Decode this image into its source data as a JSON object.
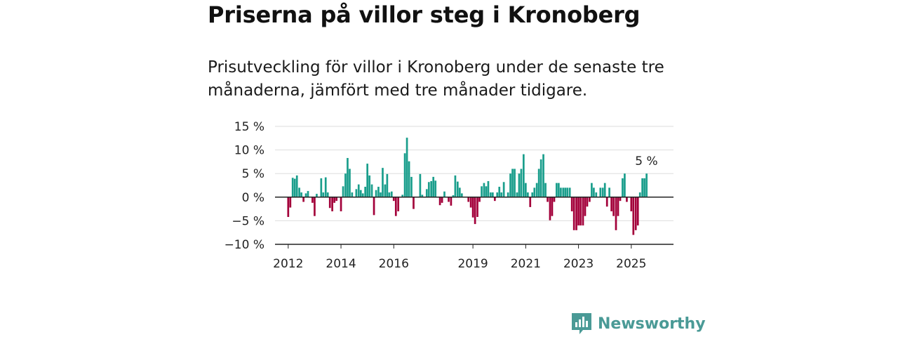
{
  "header": {
    "title": "Priserna på villor steg i Kronoberg",
    "subtitle": "Prisutveckling för villor i Kronoberg under de senaste tre månaderna, jämfört med tre månader tidigare."
  },
  "brand": {
    "name": "Newsworthy",
    "icon": "newsworthy-logo-icon",
    "color": "#4a9a96"
  },
  "colors": {
    "positive": "#1a9e8c",
    "negative": "#a3003a",
    "gridline": "#dddddd",
    "axis": "#222222"
  },
  "chart_data": {
    "type": "bar",
    "title": "Priserna på villor steg i Kronoberg",
    "xlabel": "",
    "ylabel": "",
    "unit": "%",
    "ylim": [
      -10,
      15
    ],
    "yticks": [
      15,
      10,
      5,
      0,
      -5,
      -10
    ],
    "ytick_labels": [
      "15 %",
      "10 %",
      "5 %",
      "0 %",
      "−5 %",
      "−10 %"
    ],
    "xticks": [
      "2012",
      "2014",
      "2016",
      "2019",
      "2021",
      "2023",
      "2025"
    ],
    "x_range": [
      2011.5,
      2026.6
    ],
    "grid": true,
    "last_value_label": "5 %",
    "series": [
      {
        "values": [
          {
            "x": 2012.0,
            "y": -4.2
          },
          {
            "x": 2012.08,
            "y": -2.2
          },
          {
            "x": 2012.17,
            "y": 4.1
          },
          {
            "x": 2012.25,
            "y": 3.9
          },
          {
            "x": 2012.33,
            "y": 4.6
          },
          {
            "x": 2012.42,
            "y": 2.0
          },
          {
            "x": 2012.5,
            "y": 1.0
          },
          {
            "x": 2012.58,
            "y": -1.0
          },
          {
            "x": 2012.67,
            "y": 0.8
          },
          {
            "x": 2012.75,
            "y": 1.3
          },
          {
            "x": 2012.92,
            "y": -1.2
          },
          {
            "x": 2013.0,
            "y": -4.0
          },
          {
            "x": 2013.08,
            "y": 0.7
          },
          {
            "x": 2013.25,
            "y": 4.0
          },
          {
            "x": 2013.33,
            "y": 1.0
          },
          {
            "x": 2013.42,
            "y": 4.2
          },
          {
            "x": 2013.5,
            "y": 1.0
          },
          {
            "x": 2013.58,
            "y": -2.3
          },
          {
            "x": 2013.67,
            "y": -3.0
          },
          {
            "x": 2013.75,
            "y": -1.2
          },
          {
            "x": 2013.83,
            "y": -0.8
          },
          {
            "x": 2014.0,
            "y": -3.0
          },
          {
            "x": 2014.08,
            "y": 2.3
          },
          {
            "x": 2014.17,
            "y": 5.0
          },
          {
            "x": 2014.25,
            "y": 8.3
          },
          {
            "x": 2014.33,
            "y": 6.0
          },
          {
            "x": 2014.42,
            "y": 1.0
          },
          {
            "x": 2014.58,
            "y": 1.7
          },
          {
            "x": 2014.67,
            "y": 2.7
          },
          {
            "x": 2014.75,
            "y": 1.5
          },
          {
            "x": 2014.83,
            "y": 0.8
          },
          {
            "x": 2014.92,
            "y": 2.2
          },
          {
            "x": 2015.0,
            "y": 7.1
          },
          {
            "x": 2015.08,
            "y": 4.6
          },
          {
            "x": 2015.17,
            "y": 2.7
          },
          {
            "x": 2015.25,
            "y": -3.8
          },
          {
            "x": 2015.33,
            "y": 1.5
          },
          {
            "x": 2015.42,
            "y": 2.2
          },
          {
            "x": 2015.5,
            "y": 1.0
          },
          {
            "x": 2015.58,
            "y": 6.2
          },
          {
            "x": 2015.67,
            "y": 2.7
          },
          {
            "x": 2015.75,
            "y": 4.9
          },
          {
            "x": 2015.83,
            "y": 1.0
          },
          {
            "x": 2015.92,
            "y": 1.2
          },
          {
            "x": 2016.0,
            "y": -0.8
          },
          {
            "x": 2016.08,
            "y": -4.0
          },
          {
            "x": 2016.17,
            "y": -3.0
          },
          {
            "x": 2016.33,
            "y": 0.5
          },
          {
            "x": 2016.42,
            "y": 9.3
          },
          {
            "x": 2016.5,
            "y": 12.6
          },
          {
            "x": 2016.58,
            "y": 7.6
          },
          {
            "x": 2016.67,
            "y": 4.3
          },
          {
            "x": 2016.75,
            "y": -2.5
          },
          {
            "x": 2017.0,
            "y": 4.9
          },
          {
            "x": 2017.08,
            "y": 0.5
          },
          {
            "x": 2017.25,
            "y": 1.7
          },
          {
            "x": 2017.33,
            "y": 3.2
          },
          {
            "x": 2017.42,
            "y": 3.4
          },
          {
            "x": 2017.5,
            "y": 4.3
          },
          {
            "x": 2017.58,
            "y": 3.5
          },
          {
            "x": 2017.75,
            "y": -1.7
          },
          {
            "x": 2017.83,
            "y": -1.2
          },
          {
            "x": 2017.92,
            "y": 1.2
          },
          {
            "x": 2018.08,
            "y": -1.0
          },
          {
            "x": 2018.17,
            "y": -1.8
          },
          {
            "x": 2018.25,
            "y": 0.4
          },
          {
            "x": 2018.33,
            "y": 4.6
          },
          {
            "x": 2018.42,
            "y": 3.3
          },
          {
            "x": 2018.5,
            "y": 2.0
          },
          {
            "x": 2018.58,
            "y": 0.8
          },
          {
            "x": 2018.83,
            "y": -1.0
          },
          {
            "x": 2018.92,
            "y": -2.2
          },
          {
            "x": 2019.0,
            "y": -4.3
          },
          {
            "x": 2019.08,
            "y": -5.7
          },
          {
            "x": 2019.17,
            "y": -4.2
          },
          {
            "x": 2019.25,
            "y": -1.0
          },
          {
            "x": 2019.33,
            "y": 2.3
          },
          {
            "x": 2019.42,
            "y": 3.0
          },
          {
            "x": 2019.5,
            "y": 2.3
          },
          {
            "x": 2019.58,
            "y": 3.4
          },
          {
            "x": 2019.67,
            "y": 1.0
          },
          {
            "x": 2019.75,
            "y": 1.0
          },
          {
            "x": 2019.83,
            "y": -0.8
          },
          {
            "x": 2019.92,
            "y": 1.0
          },
          {
            "x": 2020.0,
            "y": 2.2
          },
          {
            "x": 2020.08,
            "y": 1.0
          },
          {
            "x": 2020.17,
            "y": 3.2
          },
          {
            "x": 2020.33,
            "y": 1.0
          },
          {
            "x": 2020.42,
            "y": 5.0
          },
          {
            "x": 2020.5,
            "y": 6.0
          },
          {
            "x": 2020.58,
            "y": 6.0
          },
          {
            "x": 2020.67,
            "y": 1.0
          },
          {
            "x": 2020.75,
            "y": 5.0
          },
          {
            "x": 2020.83,
            "y": 6.0
          },
          {
            "x": 2020.92,
            "y": 9.1
          },
          {
            "x": 2021.0,
            "y": 3.0
          },
          {
            "x": 2021.08,
            "y": 1.0
          },
          {
            "x": 2021.17,
            "y": -2.1
          },
          {
            "x": 2021.25,
            "y": 1.0
          },
          {
            "x": 2021.33,
            "y": 2.0
          },
          {
            "x": 2021.42,
            "y": 3.0
          },
          {
            "x": 2021.5,
            "y": 6.0
          },
          {
            "x": 2021.58,
            "y": 8.0
          },
          {
            "x": 2021.67,
            "y": 9.1
          },
          {
            "x": 2021.75,
            "y": 3.0
          },
          {
            "x": 2021.83,
            "y": -1.0
          },
          {
            "x": 2021.92,
            "y": -4.9
          },
          {
            "x": 2022.0,
            "y": -4.0
          },
          {
            "x": 2022.08,
            "y": -1.0
          },
          {
            "x": 2022.17,
            "y": 3.0
          },
          {
            "x": 2022.25,
            "y": 3.0
          },
          {
            "x": 2022.33,
            "y": 2.0
          },
          {
            "x": 2022.42,
            "y": 2.0
          },
          {
            "x": 2022.5,
            "y": 2.0
          },
          {
            "x": 2022.58,
            "y": 2.0
          },
          {
            "x": 2022.67,
            "y": 2.0
          },
          {
            "x": 2022.75,
            "y": -3.0
          },
          {
            "x": 2022.83,
            "y": -7.0
          },
          {
            "x": 2022.92,
            "y": -7.0
          },
          {
            "x": 2023.0,
            "y": -6.0
          },
          {
            "x": 2023.08,
            "y": -6.0
          },
          {
            "x": 2023.17,
            "y": -6.0
          },
          {
            "x": 2023.25,
            "y": -4.0
          },
          {
            "x": 2023.33,
            "y": -2.0
          },
          {
            "x": 2023.42,
            "y": -1.0
          },
          {
            "x": 2023.5,
            "y": 3.0
          },
          {
            "x": 2023.58,
            "y": 2.0
          },
          {
            "x": 2023.67,
            "y": 1.0
          },
          {
            "x": 2023.83,
            "y": 2.0
          },
          {
            "x": 2023.92,
            "y": 2.0
          },
          {
            "x": 2024.0,
            "y": 3.0
          },
          {
            "x": 2024.08,
            "y": -2.0
          },
          {
            "x": 2024.17,
            "y": 2.0
          },
          {
            "x": 2024.25,
            "y": -3.0
          },
          {
            "x": 2024.33,
            "y": -4.0
          },
          {
            "x": 2024.42,
            "y": -7.0
          },
          {
            "x": 2024.5,
            "y": -4.0
          },
          {
            "x": 2024.58,
            "y": -0.8
          },
          {
            "x": 2024.67,
            "y": 4.0
          },
          {
            "x": 2024.75,
            "y": 5.0
          },
          {
            "x": 2024.83,
            "y": -1.0
          },
          {
            "x": 2025.0,
            "y": -3.0
          },
          {
            "x": 2025.08,
            "y": -8.0
          },
          {
            "x": 2025.17,
            "y": -7.0
          },
          {
            "x": 2025.25,
            "y": -6.0
          },
          {
            "x": 2025.33,
            "y": 1.0
          },
          {
            "x": 2025.42,
            "y": 4.0
          },
          {
            "x": 2025.5,
            "y": 4.0
          },
          {
            "x": 2025.58,
            "y": 5.0
          }
        ]
      }
    ]
  }
}
